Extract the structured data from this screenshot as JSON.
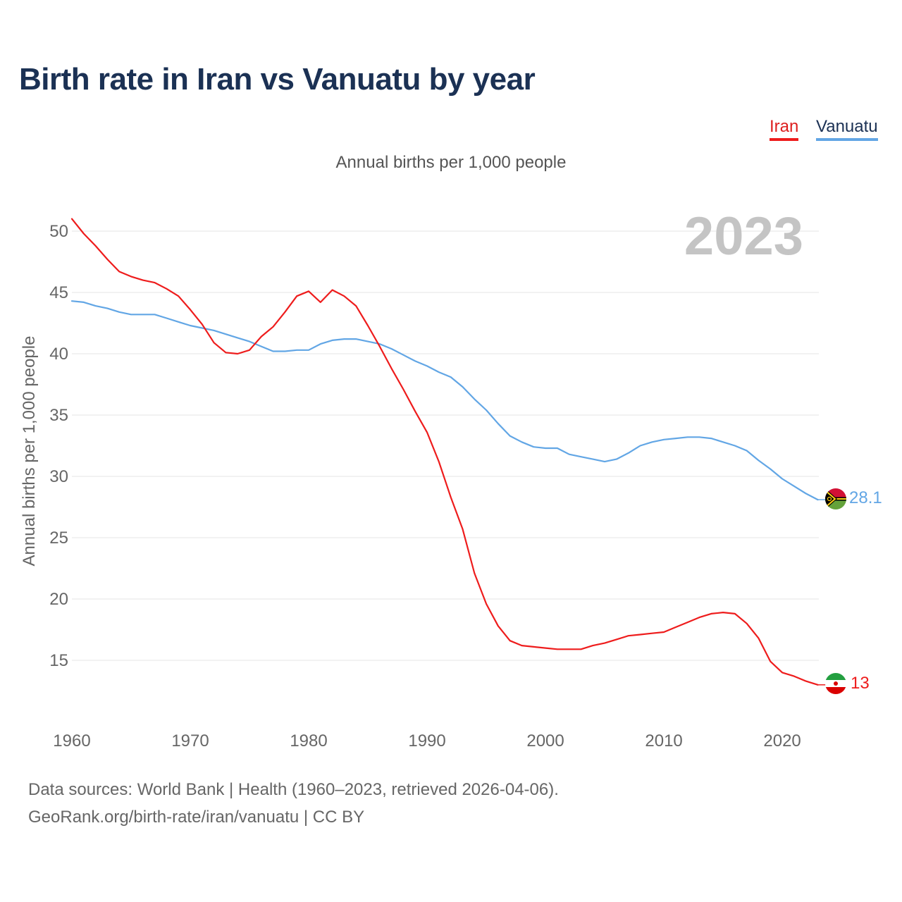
{
  "title": "Birth rate in Iran vs Vanuatu by year",
  "subtitle": "Annual births per 1,000 people",
  "legend": {
    "iran": "Iran",
    "vanuatu": "Vanuatu"
  },
  "year_watermark": "2023",
  "end_labels": {
    "vanuatu": "28.1",
    "iran": "13"
  },
  "source": {
    "line1": "Data sources: World Bank | Health (1960–2023, retrieved 2026-04-06).",
    "line2": "GeoRank.org/birth-rate/iran/vanuatu | CC BY"
  },
  "colors": {
    "iran": "#ee1c1c",
    "vanuatu": "#62a6e5",
    "title": "#1b3154",
    "grid": "#e6e6e6"
  },
  "chart_data": {
    "type": "line",
    "title": "Birth rate in Iran vs Vanuatu by year",
    "xlabel": "",
    "ylabel": "Annual births per 1,000 people",
    "xlim": [
      1960,
      2023
    ],
    "ylim": [
      10,
      52
    ],
    "xticks": [
      1960,
      1970,
      1980,
      1990,
      2000,
      2010,
      2020
    ],
    "yticks": [
      15,
      20,
      25,
      30,
      35,
      40,
      45,
      50
    ],
    "grid": true,
    "legend_position": "top-right",
    "x": [
      1960,
      1961,
      1962,
      1963,
      1964,
      1965,
      1966,
      1967,
      1968,
      1969,
      1970,
      1971,
      1972,
      1973,
      1974,
      1975,
      1976,
      1977,
      1978,
      1979,
      1980,
      1981,
      1982,
      1983,
      1984,
      1985,
      1986,
      1987,
      1988,
      1989,
      1990,
      1991,
      1992,
      1993,
      1994,
      1995,
      1996,
      1997,
      1998,
      1999,
      2000,
      2001,
      2002,
      2003,
      2004,
      2005,
      2006,
      2007,
      2008,
      2009,
      2010,
      2011,
      2012,
      2013,
      2014,
      2015,
      2016,
      2017,
      2018,
      2019,
      2020,
      2021,
      2022,
      2023
    ],
    "series": [
      {
        "name": "Iran",
        "values": [
          51.0,
          49.8,
          48.8,
          47.7,
          46.7,
          46.3,
          46.0,
          45.8,
          45.3,
          44.7,
          43.6,
          42.4,
          40.9,
          40.1,
          40.0,
          40.3,
          41.4,
          42.2,
          43.4,
          44.7,
          45.1,
          44.2,
          45.2,
          44.7,
          43.9,
          42.3,
          40.6,
          38.8,
          37.1,
          35.3,
          33.6,
          31.2,
          28.3,
          25.7,
          22.1,
          19.6,
          17.8,
          16.6,
          16.2,
          16.1,
          16.0,
          15.9,
          15.9,
          15.9,
          16.2,
          16.4,
          16.7,
          17.0,
          17.1,
          17.2,
          17.3,
          17.7,
          18.1,
          18.5,
          18.8,
          18.9,
          18.8,
          18.0,
          16.8,
          14.9,
          14.0,
          13.7,
          13.3,
          13.0
        ]
      },
      {
        "name": "Vanuatu",
        "values": [
          44.3,
          44.2,
          43.9,
          43.7,
          43.4,
          43.2,
          43.2,
          43.2,
          42.9,
          42.6,
          42.3,
          42.1,
          41.9,
          41.6,
          41.3,
          41.0,
          40.6,
          40.2,
          40.2,
          40.3,
          40.3,
          40.8,
          41.1,
          41.2,
          41.2,
          41.0,
          40.8,
          40.4,
          39.9,
          39.4,
          39.0,
          38.5,
          38.1,
          37.3,
          36.3,
          35.4,
          34.3,
          33.3,
          32.8,
          32.4,
          32.3,
          32.3,
          31.8,
          31.6,
          31.4,
          31.2,
          31.4,
          31.9,
          32.5,
          32.8,
          33.0,
          33.1,
          33.2,
          33.2,
          33.1,
          32.8,
          32.5,
          32.1,
          31.3,
          30.6,
          29.8,
          29.2,
          28.6,
          28.1
        ]
      }
    ]
  }
}
